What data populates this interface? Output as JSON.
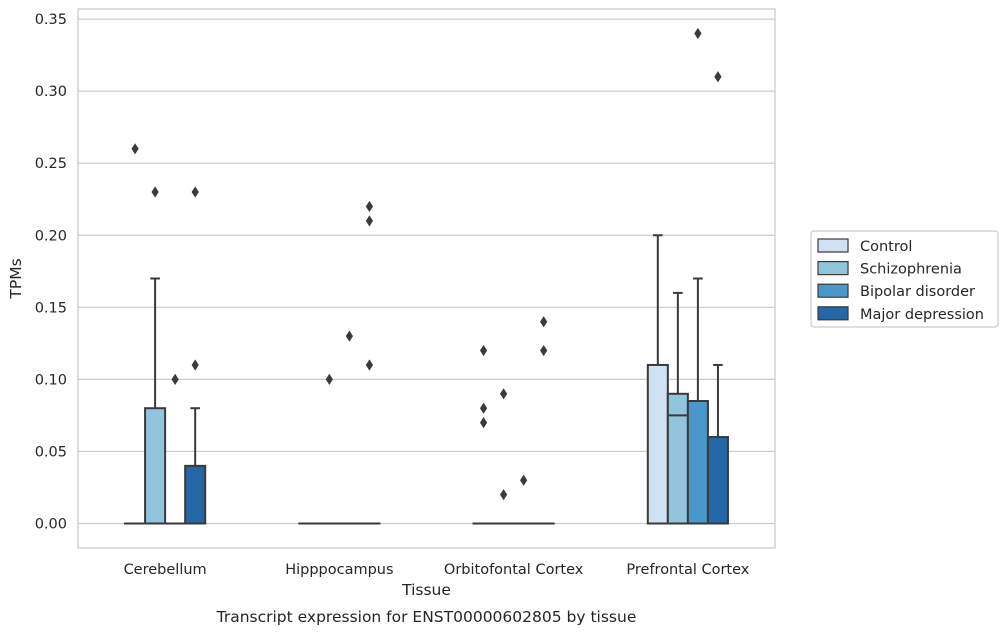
{
  "chart_data": {
    "type": "box",
    "title": "",
    "caption": "Transcript expression for ENST00000602805 by tissue",
    "xlabel": "Tissue",
    "ylabel": "TPMs",
    "ylim": [
      -0.017,
      0.357
    ],
    "yticks": [
      0.0,
      0.05,
      0.1,
      0.15,
      0.2,
      0.25,
      0.3,
      0.35
    ],
    "ytick_labels": [
      "0.00",
      "0.05",
      "0.10",
      "0.15",
      "0.20",
      "0.25",
      "0.30",
      "0.35"
    ],
    "grid": "horizontal",
    "legend_position": "right",
    "categories": [
      "Cerebellum",
      "Hipppocampus",
      "Orbitofontal Cortex",
      "Prefrontal Cortex"
    ],
    "series": [
      {
        "name": "Control",
        "color": "#cfe1f2",
        "boxes": [
          {
            "q1": 0,
            "median": 0,
            "q3": 0,
            "whisker_low": 0,
            "whisker_high": 0,
            "outliers": [
              0.26
            ]
          },
          {
            "q1": 0,
            "median": 0,
            "q3": 0,
            "whisker_low": 0,
            "whisker_high": 0,
            "outliers": []
          },
          {
            "q1": 0,
            "median": 0,
            "q3": 0,
            "whisker_low": 0,
            "whisker_high": 0,
            "outliers": [
              0.12,
              0.08,
              0.07
            ]
          },
          {
            "q1": 0,
            "median": 0,
            "q3": 0.11,
            "whisker_low": 0,
            "whisker_high": 0.2,
            "outliers": []
          }
        ]
      },
      {
        "name": "Schizophrenia",
        "color": "#93c4de",
        "boxes": [
          {
            "q1": 0,
            "median": 0,
            "q3": 0.08,
            "whisker_low": 0,
            "whisker_high": 0.17,
            "outliers": [
              0.23
            ]
          },
          {
            "q1": 0,
            "median": 0,
            "q3": 0,
            "whisker_low": 0,
            "whisker_high": 0,
            "outliers": [
              0.1
            ]
          },
          {
            "q1": 0,
            "median": 0,
            "q3": 0,
            "whisker_low": 0,
            "whisker_high": 0,
            "outliers": [
              0.09,
              0.02
            ]
          },
          {
            "q1": 0,
            "median": 0.075,
            "q3": 0.09,
            "whisker_low": 0,
            "whisker_high": 0.16,
            "outliers": []
          }
        ]
      },
      {
        "name": "Bipolar disorder",
        "color": "#4a98c9",
        "boxes": [
          {
            "q1": 0,
            "median": 0,
            "q3": 0,
            "whisker_low": 0,
            "whisker_high": 0,
            "outliers": [
              0.1
            ]
          },
          {
            "q1": 0,
            "median": 0,
            "q3": 0,
            "whisker_low": 0,
            "whisker_high": 0,
            "outliers": [
              0.13
            ]
          },
          {
            "q1": 0,
            "median": 0,
            "q3": 0,
            "whisker_low": 0,
            "whisker_high": 0,
            "outliers": [
              0.03
            ]
          },
          {
            "q1": 0,
            "median": 0,
            "q3": 0.085,
            "whisker_low": 0,
            "whisker_high": 0.17,
            "outliers": [
              0.34
            ]
          }
        ]
      },
      {
        "name": "Major depression",
        "color": "#2466a6",
        "boxes": [
          {
            "q1": 0,
            "median": 0,
            "q3": 0.04,
            "whisker_low": 0,
            "whisker_high": 0.08,
            "outliers": [
              0.23,
              0.11
            ]
          },
          {
            "q1": 0,
            "median": 0,
            "q3": 0,
            "whisker_low": 0,
            "whisker_high": 0,
            "outliers": [
              0.22,
              0.21,
              0.11
            ]
          },
          {
            "q1": 0,
            "median": 0,
            "q3": 0,
            "whisker_low": 0,
            "whisker_high": 0,
            "outliers": [
              0.14,
              0.12
            ]
          },
          {
            "q1": 0,
            "median": 0,
            "q3": 0.06,
            "whisker_low": 0,
            "whisker_high": 0.11,
            "outliers": [
              0.31
            ]
          }
        ]
      }
    ]
  }
}
